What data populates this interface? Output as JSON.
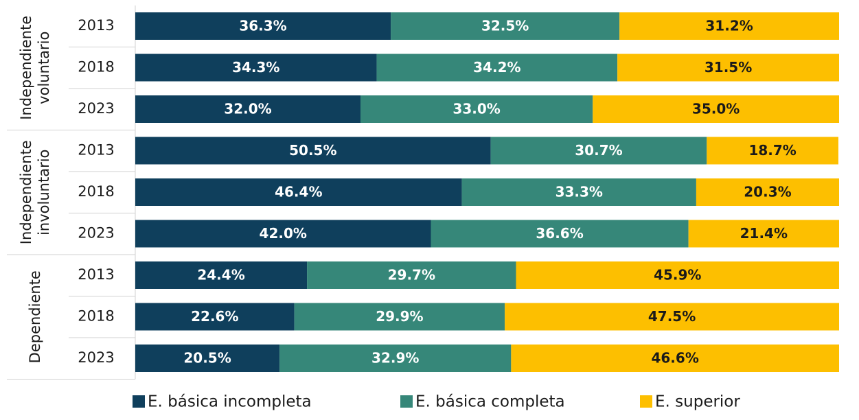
{
  "chart_data": {
    "type": "stacked-bar-horizontal",
    "group_labels": [
      [
        "Independiente",
        "voluntario"
      ],
      [
        "Independiente",
        "involuntario"
      ],
      [
        "Dependiente"
      ]
    ],
    "categories": [
      "2013",
      "2018",
      "2023",
      "2013",
      "2018",
      "2023",
      "2013",
      "2018",
      "2023"
    ],
    "xlim": [
      0,
      100
    ],
    "series": [
      {
        "name": "E. básica incompleta",
        "color": "#0f3f5c",
        "label_color": "#ffffff",
        "values": [
          36.3,
          34.3,
          32.0,
          50.5,
          46.4,
          42.0,
          24.4,
          22.6,
          20.5
        ],
        "value_labels": [
          "36.3%",
          "34.3%",
          "32.0%",
          "50.5%",
          "46.4%",
          "42.0%",
          "24.4%",
          "22.6%",
          "20.5%"
        ]
      },
      {
        "name": "E. básica completa",
        "color": "#368779",
        "label_color": "#ffffff",
        "values": [
          32.5,
          34.2,
          33.0,
          30.7,
          33.3,
          36.6,
          29.7,
          29.9,
          32.9
        ],
        "value_labels": [
          "32.5%",
          "34.2%",
          "33.0%",
          "30.7%",
          "33.3%",
          "36.6%",
          "29.7%",
          "29.9%",
          "32.9%"
        ]
      },
      {
        "name": "E. superior",
        "color": "#fdbf00",
        "label_color": "#1a1a1a",
        "values": [
          31.2,
          31.5,
          35.0,
          18.7,
          20.3,
          21.4,
          45.9,
          47.5,
          46.6
        ],
        "value_labels": [
          "31.2%",
          "31.5%",
          "35.0%",
          "18.7%",
          "20.3%",
          "21.4%",
          "45.9%",
          "47.5%",
          "46.6%"
        ]
      }
    ]
  }
}
